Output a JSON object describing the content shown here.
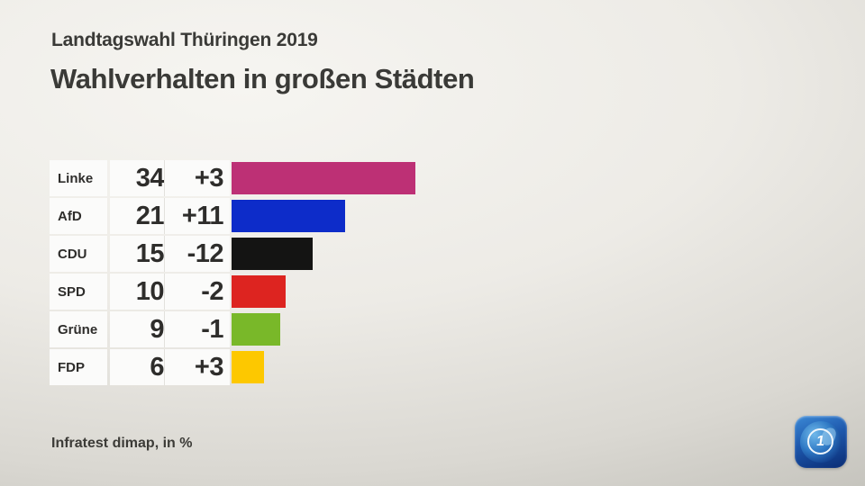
{
  "header": {
    "kicker": "Landtagswahl Thüringen 2019",
    "title": "Wahlverhalten in großen Städten"
  },
  "chart_data": {
    "type": "bar",
    "title": "Wahlverhalten in großen Städten",
    "kicker": "Landtagswahl Thüringen 2019",
    "unit": "%",
    "orientation": "horizontal",
    "xlim": [
      0,
      40
    ],
    "grid": false,
    "legend": "none",
    "categories": [
      "Linke",
      "AfD",
      "CDU",
      "SPD",
      "Grüne",
      "FDP"
    ],
    "values": [
      34,
      21,
      15,
      10,
      9,
      6
    ],
    "changes": [
      "+3",
      "+11",
      "-12",
      "-2",
      "-1",
      "+3"
    ],
    "bar_colors": [
      "#bd3075",
      "#0d2cc9",
      "#141413",
      "#dd2420",
      "#79b829",
      "#fdc800"
    ],
    "rows": [
      {
        "party": "Linke",
        "value": 34,
        "change": "+3",
        "color": "#bd3075"
      },
      {
        "party": "AfD",
        "value": 21,
        "change": "+11",
        "color": "#0d2cc9"
      },
      {
        "party": "CDU",
        "value": 15,
        "change": "-12",
        "color": "#141413"
      },
      {
        "party": "SPD",
        "value": 10,
        "change": "-2",
        "color": "#dd2420"
      },
      {
        "party": "Grüne",
        "value": 9,
        "change": "-1",
        "color": "#79b829"
      },
      {
        "party": "FDP",
        "value": 6,
        "change": "+3",
        "color": "#fdc800"
      }
    ]
  },
  "footer": {
    "source": "Infratest dimap, in %"
  },
  "branding": {
    "logo_icon": "ard-one-globe-icon",
    "logo_glyph": "1",
    "logo_color": "#1d57ac"
  }
}
